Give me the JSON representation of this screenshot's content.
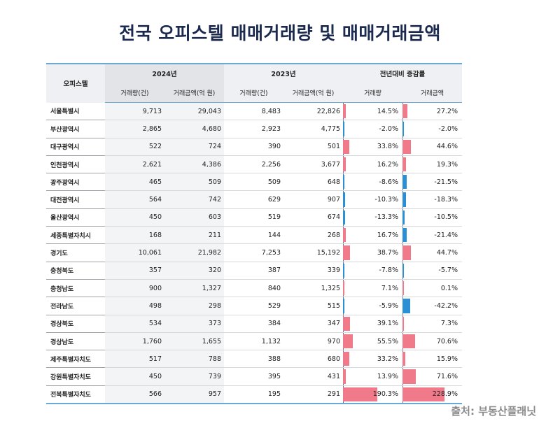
{
  "title": "전국 오피스텔 매매거래량 및 매매거래금액",
  "source": "출처: 부동산플래닛",
  "colors": {
    "positive": "#f07a8a",
    "negative": "#2b8fd6",
    "rule": "#6aa9d6"
  },
  "header": {
    "region": "오피스텔",
    "group_2024": "2024년",
    "group_2023": "2023년",
    "group_change": "전년대비 증감률",
    "sub_volume": "거래량(건)",
    "sub_amount": "거래금액(억 원)",
    "sub_volume_chg": "거래량",
    "sub_amount_chg": "거래금액"
  },
  "rows": [
    {
      "region": "서울특별시",
      "v24": "9,713",
      "a24": "29,043",
      "v23": "8,483",
      "a23": "22,826",
      "vc": "14.5%",
      "ac": "27.2%",
      "vcn": 14.5,
      "acn": 27.2
    },
    {
      "region": "부산광역시",
      "v24": "2,865",
      "a24": "4,680",
      "v23": "2,923",
      "a23": "4,775",
      "vc": "-2.0%",
      "ac": "-2.0%",
      "vcn": -2.0,
      "acn": -2.0
    },
    {
      "region": "대구광역시",
      "v24": "522",
      "a24": "724",
      "v23": "390",
      "a23": "501",
      "vc": "33.8%",
      "ac": "44.6%",
      "vcn": 33.8,
      "acn": 44.6
    },
    {
      "region": "인천광역시",
      "v24": "2,621",
      "a24": "4,386",
      "v23": "2,256",
      "a23": "3,677",
      "vc": "16.2%",
      "ac": "19.3%",
      "vcn": 16.2,
      "acn": 19.3
    },
    {
      "region": "광주광역시",
      "v24": "465",
      "a24": "509",
      "v23": "509",
      "a23": "648",
      "vc": "-8.6%",
      "ac": "-21.5%",
      "vcn": -8.6,
      "acn": -21.5
    },
    {
      "region": "대전광역시",
      "v24": "564",
      "a24": "742",
      "v23": "629",
      "a23": "907",
      "vc": "-10.3%",
      "ac": "-18.3%",
      "vcn": -10.3,
      "acn": -18.3
    },
    {
      "region": "울산광역시",
      "v24": "450",
      "a24": "603",
      "v23": "519",
      "a23": "674",
      "vc": "-13.3%",
      "ac": "-10.5%",
      "vcn": -13.3,
      "acn": -10.5
    },
    {
      "region": "세종특별자치시",
      "v24": "168",
      "a24": "211",
      "v23": "144",
      "a23": "268",
      "vc": "16.7%",
      "ac": "-21.4%",
      "vcn": 16.7,
      "acn": -21.4
    },
    {
      "region": "경기도",
      "v24": "10,061",
      "a24": "21,982",
      "v23": "7,253",
      "a23": "15,192",
      "vc": "38.7%",
      "ac": "44.7%",
      "vcn": 38.7,
      "acn": 44.7
    },
    {
      "region": "충청북도",
      "v24": "357",
      "a24": "320",
      "v23": "387",
      "a23": "339",
      "vc": "-7.8%",
      "ac": "-5.7%",
      "vcn": -7.8,
      "acn": -5.7
    },
    {
      "region": "충청남도",
      "v24": "900",
      "a24": "1,327",
      "v23": "840",
      "a23": "1,325",
      "vc": "7.1%",
      "ac": "0.1%",
      "vcn": 7.1,
      "acn": 0.1
    },
    {
      "region": "전라남도",
      "v24": "498",
      "a24": "298",
      "v23": "529",
      "a23": "515",
      "vc": "-5.9%",
      "ac": "-42.2%",
      "vcn": -5.9,
      "acn": -42.2
    },
    {
      "region": "경상북도",
      "v24": "534",
      "a24": "373",
      "v23": "384",
      "a23": "347",
      "vc": "39.1%",
      "ac": "7.3%",
      "vcn": 39.1,
      "acn": 7.3
    },
    {
      "region": "경상남도",
      "v24": "1,760",
      "a24": "1,655",
      "v23": "1,132",
      "a23": "970",
      "vc": "55.5%",
      "ac": "70.6%",
      "vcn": 55.5,
      "acn": 70.6
    },
    {
      "region": "제주특별자치도",
      "v24": "517",
      "a24": "788",
      "v23": "388",
      "a23": "680",
      "vc": "33.2%",
      "ac": "15.9%",
      "vcn": 33.2,
      "acn": 15.9
    },
    {
      "region": "강원특별자치도",
      "v24": "450",
      "a24": "739",
      "v23": "395",
      "a23": "431",
      "vc": "13.9%",
      "ac": "71.6%",
      "vcn": 13.9,
      "acn": 71.6
    },
    {
      "region": "전북특별자치도",
      "v24": "566",
      "a24": "957",
      "v23": "195",
      "a23": "291",
      "vc": "190.3%",
      "ac": "228.9%",
      "vcn": 190.3,
      "acn": 228.9
    }
  ]
}
